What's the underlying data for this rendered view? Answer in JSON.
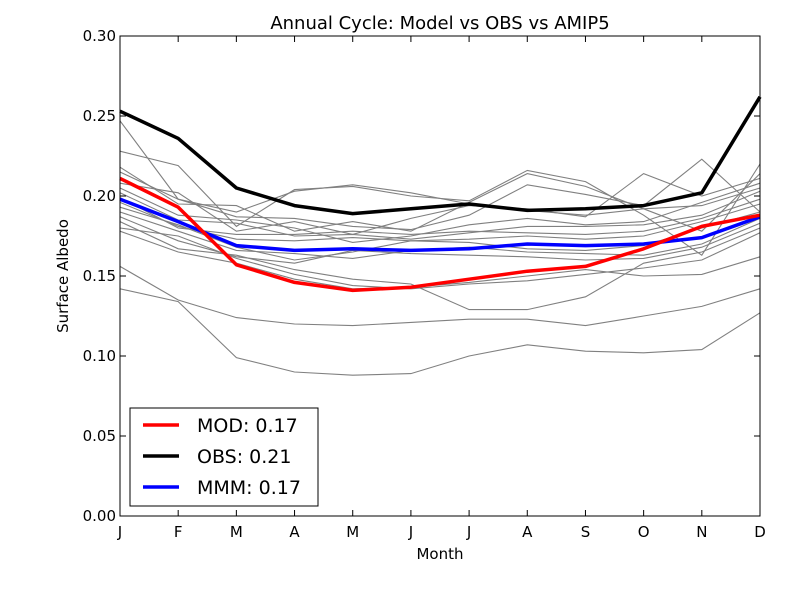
{
  "chart_data": {
    "type": "line",
    "title": "Annual Cycle: Model vs OBS vs AMIP5",
    "xlabel": "Month",
    "ylabel": "Surface Albedo",
    "categories": [
      "J",
      "F",
      "M",
      "A",
      "M",
      "J",
      "J",
      "A",
      "S",
      "O",
      "N",
      "D"
    ],
    "ylim": [
      0.0,
      0.3
    ],
    "yticks": [
      "0.00",
      "0.05",
      "0.10",
      "0.15",
      "0.20",
      "0.25",
      "0.30"
    ],
    "legend_position": "lower-left",
    "main_series": [
      {
        "name": "MOD: 0.17",
        "color": "#ff0000",
        "values": [
          0.211,
          0.193,
          0.157,
          0.146,
          0.141,
          0.143,
          0.148,
          0.153,
          0.156,
          0.167,
          0.181,
          0.188
        ]
      },
      {
        "name": "OBS: 0.21",
        "color": "#000000",
        "values": [
          0.253,
          0.236,
          0.205,
          0.194,
          0.189,
          0.192,
          0.195,
          0.191,
          0.192,
          0.194,
          0.202,
          0.262
        ]
      },
      {
        "name": "MMM: 0.17",
        "color": "#0000ff",
        "values": [
          0.198,
          0.184,
          0.169,
          0.166,
          0.167,
          0.166,
          0.167,
          0.17,
          0.169,
          0.17,
          0.174,
          0.187
        ]
      }
    ],
    "ensemble_color": "#808080",
    "ensemble_series": [
      {
        "values": [
          0.247,
          0.198,
          0.19,
          0.203,
          0.207,
          0.202,
          0.195,
          0.191,
          0.188,
          0.192,
          0.194,
          0.205
        ]
      },
      {
        "values": [
          0.228,
          0.219,
          0.181,
          0.204,
          0.206,
          0.2,
          0.197,
          0.216,
          0.209,
          0.188,
          0.163,
          0.22
        ]
      },
      {
        "values": [
          0.218,
          0.195,
          0.194,
          0.178,
          0.184,
          0.178,
          0.196,
          0.214,
          0.206,
          0.192,
          0.178,
          0.214
        ]
      },
      {
        "values": [
          0.215,
          0.198,
          0.187,
          0.186,
          0.181,
          0.179,
          0.188,
          0.207,
          0.201,
          0.194,
          0.223,
          0.19
        ]
      },
      {
        "values": [
          0.208,
          0.202,
          0.178,
          0.184,
          0.176,
          0.186,
          0.194,
          0.192,
          0.187,
          0.214,
          0.2,
          0.211
        ]
      },
      {
        "values": [
          0.205,
          0.188,
          0.185,
          0.18,
          0.171,
          0.175,
          0.182,
          0.186,
          0.182,
          0.184,
          0.196,
          0.208
        ]
      },
      {
        "values": [
          0.202,
          0.185,
          0.183,
          0.175,
          0.176,
          0.173,
          0.177,
          0.181,
          0.181,
          0.182,
          0.188,
          0.203
        ]
      },
      {
        "values": [
          0.199,
          0.18,
          0.176,
          0.176,
          0.178,
          0.176,
          0.178,
          0.177,
          0.176,
          0.178,
          0.186,
          0.198
        ]
      },
      {
        "values": [
          0.196,
          0.181,
          0.173,
          0.172,
          0.174,
          0.172,
          0.173,
          0.175,
          0.173,
          0.175,
          0.184,
          0.195
        ]
      },
      {
        "values": [
          0.193,
          0.182,
          0.168,
          0.16,
          0.165,
          0.172,
          0.171,
          0.167,
          0.166,
          0.169,
          0.18,
          0.19
        ]
      },
      {
        "values": [
          0.19,
          0.178,
          0.166,
          0.164,
          0.161,
          0.166,
          0.168,
          0.165,
          0.164,
          0.163,
          0.17,
          0.186
        ]
      },
      {
        "values": [
          0.187,
          0.172,
          0.162,
          0.158,
          0.166,
          0.164,
          0.163,
          0.162,
          0.16,
          0.161,
          0.168,
          0.183
        ]
      },
      {
        "values": [
          0.184,
          0.167,
          0.163,
          0.154,
          0.148,
          0.145,
          0.129,
          0.129,
          0.137,
          0.158,
          0.165,
          0.18
        ]
      },
      {
        "values": [
          0.18,
          0.175,
          0.161,
          0.151,
          0.144,
          0.142,
          0.145,
          0.147,
          0.151,
          0.155,
          0.16,
          0.177
        ]
      },
      {
        "values": [
          0.178,
          0.165,
          0.158,
          0.148,
          0.142,
          0.143,
          0.146,
          0.15,
          0.154,
          0.15,
          0.151,
          0.162
        ]
      },
      {
        "values": [
          0.156,
          0.135,
          0.124,
          0.12,
          0.119,
          0.121,
          0.123,
          0.123,
          0.119,
          0.125,
          0.131,
          0.142
        ]
      },
      {
        "values": [
          0.142,
          0.134,
          0.099,
          0.09,
          0.088,
          0.089,
          0.1,
          0.107,
          0.103,
          0.102,
          0.104,
          0.127
        ]
      }
    ]
  }
}
